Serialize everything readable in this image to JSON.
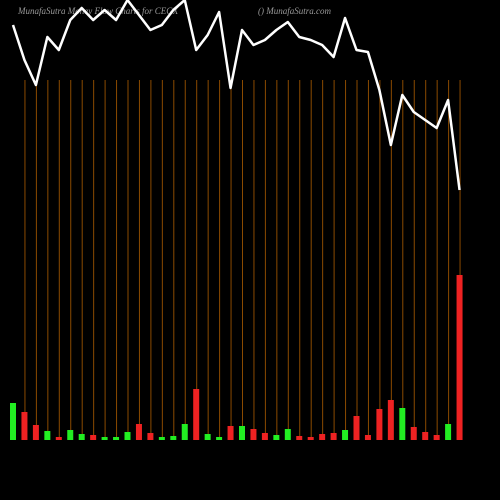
{
  "chart_data": {
    "type": "bar",
    "title": "MunafaSutra Money Flow Charts for CEGX",
    "subtitle": "() MunafaSutra.com",
    "background": "#000000",
    "grid_color": "#8a4a00",
    "categories": [
      null,
      null,
      null,
      null,
      null,
      null,
      null,
      null,
      null,
      null,
      null,
      null,
      null,
      null,
      null,
      null,
      null,
      null,
      null,
      null,
      null,
      null,
      null,
      null,
      null,
      null,
      null,
      null,
      null,
      null,
      null,
      null,
      null,
      null,
      null,
      null,
      null,
      null,
      null,
      null
    ],
    "series": [
      {
        "type": "bar",
        "values": [
          37,
          28,
          15,
          9,
          3,
          10,
          6,
          5,
          3,
          3,
          8,
          16,
          7,
          3,
          4,
          16,
          51,
          6,
          3,
          14,
          14,
          11,
          7,
          5,
          11,
          4,
          3,
          6,
          7,
          10,
          24,
          5,
          31,
          40,
          32,
          13,
          8,
          5,
          16,
          165
        ],
        "colors": [
          "#22ee22",
          "#ee2222",
          "#ee2222",
          "#22ee22",
          "#ee2222",
          "#22ee22",
          "#22ee22",
          "#ee2222",
          "#22ee22",
          "#22ee22",
          "#22ee22",
          "#ee2222",
          "#ee2222",
          "#22ee22",
          "#22ee22",
          "#22ee22",
          "#ee2222",
          "#22ee22",
          "#22ee22",
          "#ee2222",
          "#22ee22",
          "#ee2222",
          "#ee2222",
          "#22ee22",
          "#22ee22",
          "#ee2222",
          "#ee2222",
          "#ee2222",
          "#ee2222",
          "#22ee22",
          "#ee2222",
          "#ee2222",
          "#ee2222",
          "#ee2222",
          "#22ee22",
          "#ee2222",
          "#ee2222",
          "#ee2222",
          "#22ee22",
          "#ee2222"
        ]
      },
      {
        "type": "line",
        "color": "#ffffff",
        "values": [
          415,
          380,
          355,
          403,
          390,
          420,
          432,
          420,
          430,
          420,
          440,
          425,
          410,
          415,
          430,
          440,
          390,
          405,
          428,
          352,
          410,
          395,
          400,
          410,
          418,
          403,
          400,
          395,
          383,
          422,
          390,
          388,
          350,
          295,
          345,
          328,
          320,
          312,
          340,
          250
        ]
      }
    ]
  }
}
